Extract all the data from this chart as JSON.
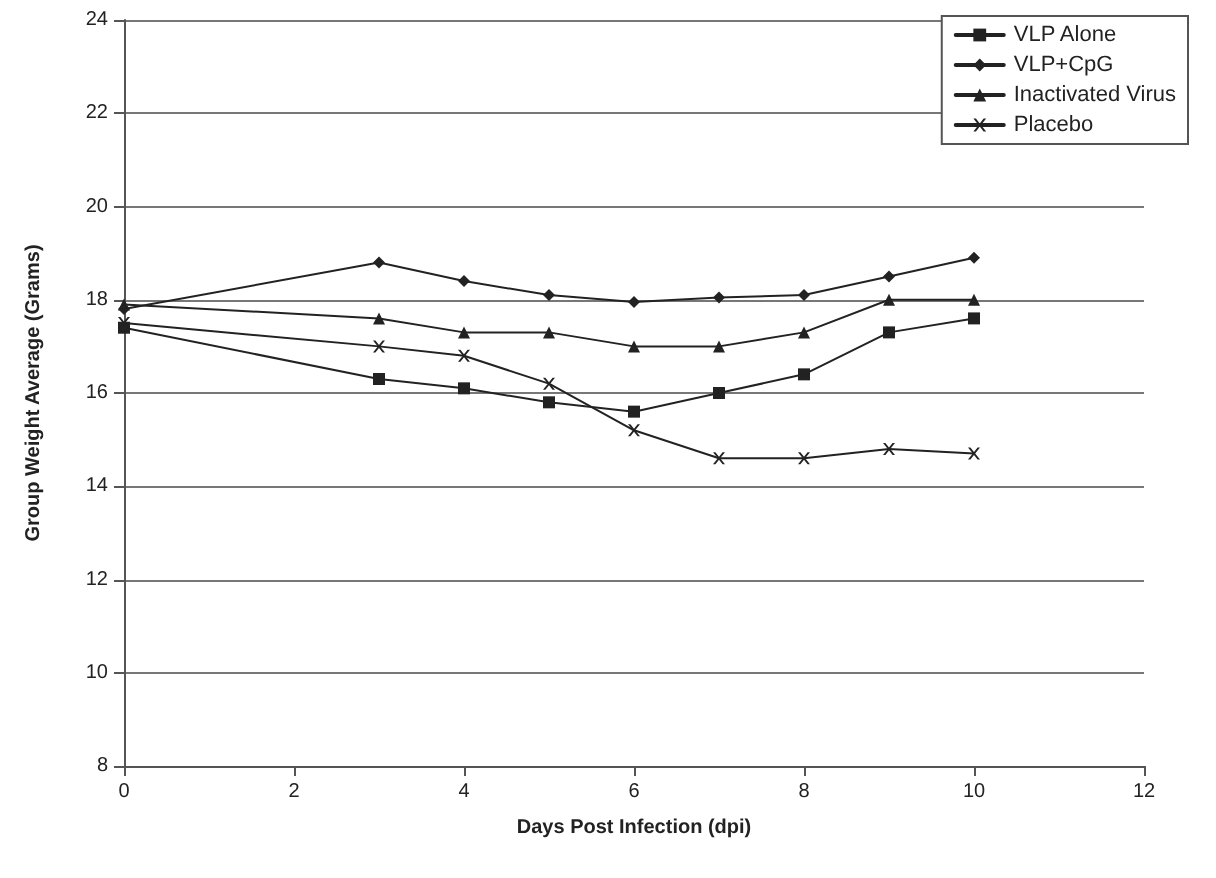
{
  "chart_data": {
    "type": "line",
    "xlabel": "Days Post Infection (dpi)",
    "ylabel": "Group Weight Average (Grams)",
    "x": [
      0,
      3,
      4,
      5,
      6,
      7,
      8,
      9,
      10
    ],
    "series": [
      {
        "name": "VLP Alone",
        "color": "#222222",
        "marker": "square",
        "values": [
          17.4,
          16.3,
          16.1,
          15.8,
          15.6,
          16.0,
          16.4,
          17.3,
          17.6
        ]
      },
      {
        "name": "VLP+CpG",
        "color": "#222222",
        "marker": "diamond",
        "values": [
          17.8,
          18.8,
          18.4,
          18.1,
          17.95,
          18.05,
          18.1,
          18.5,
          18.9
        ]
      },
      {
        "name": "Inactivated Virus",
        "color": "#222222",
        "marker": "triangle",
        "values": [
          17.9,
          17.6,
          17.3,
          17.3,
          17.0,
          17.0,
          17.3,
          18.0,
          18.0
        ]
      },
      {
        "name": "Placebo",
        "color": "#222222",
        "marker": "cross",
        "values": [
          17.5,
          17.0,
          16.8,
          16.2,
          15.2,
          14.6,
          14.6,
          14.8,
          14.7
        ]
      }
    ],
    "xlim": [
      0,
      12
    ],
    "xticks": [
      0,
      2,
      4,
      6,
      8,
      10,
      12
    ],
    "ylim": [
      8,
      24
    ],
    "yticks": [
      8,
      10,
      12,
      14,
      16,
      18,
      20,
      22,
      24
    ],
    "grid": "y",
    "legend": "top right",
    "line_style": "solid"
  }
}
